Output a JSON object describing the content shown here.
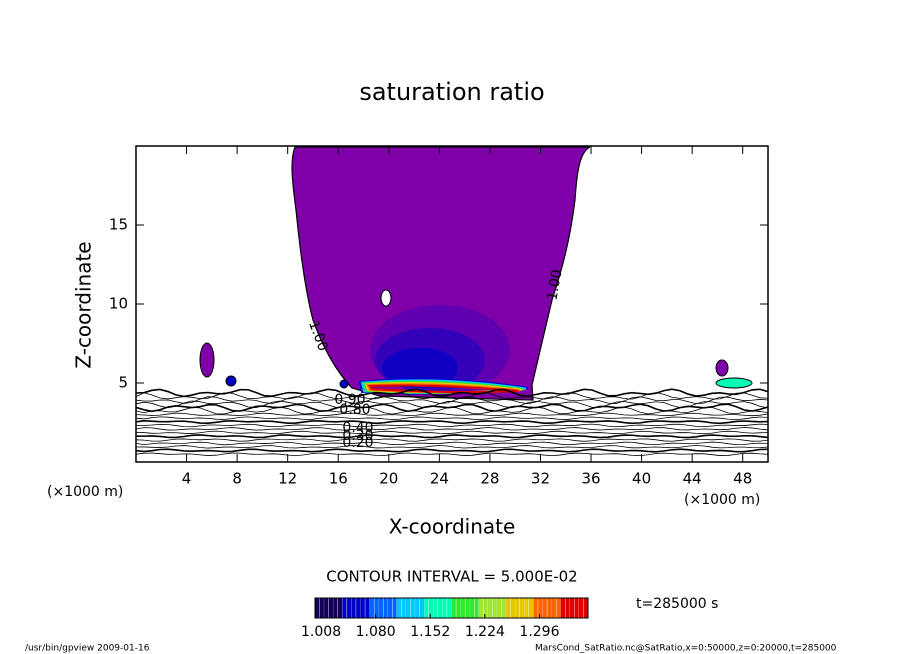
{
  "chart_data": {
    "type": "contour",
    "title": "saturation ratio",
    "xlabel": "X-coordinate",
    "ylabel": "Z-coordinate",
    "x_unit": "(×1000 m)",
    "y_unit": "(×1000 m)",
    "xlim": [
      0,
      50
    ],
    "ylim": [
      0,
      20
    ],
    "xticks": [
      4,
      8,
      12,
      16,
      20,
      24,
      28,
      32,
      36,
      40,
      44,
      48
    ],
    "yticks": [
      5,
      10,
      15
    ],
    "fill_color": "#7f00a8",
    "contour_labels": [
      {
        "value": 1,
        "label": "1.00"
      },
      {
        "value": 1,
        "label": "1.00"
      },
      {
        "value": 0.9,
        "label": "0.90"
      },
      {
        "value": 0.8,
        "label": "0.80"
      },
      {
        "value": 0.4,
        "label": "0.40"
      },
      {
        "value": 0.3,
        "label": "0.30"
      },
      {
        "value": 0.2,
        "label": "0.20"
      }
    ],
    "contour_interval": "CONTOUR INTERVAL = 5.000E-02",
    "colorbar": {
      "clim": [
        1.0,
        1.36
      ],
      "colors": [
        "#14005a",
        "#0000c8",
        "#0064ff",
        "#00c8ff",
        "#00ffb4",
        "#32e632",
        "#a0e632",
        "#e6c800",
        "#ff6400",
        "#dc0000"
      ],
      "ticks": [
        1.008,
        {
          "value": 1.08,
          "label": "1.080"
        },
        1.152,
        1.224,
        1.296
      ]
    },
    "time_label": "t=285000 s",
    "footer_left": "/usr/bin/gpview   2009-01-16",
    "footer_right": "MarsCond_SatRatio.nc@SatRatio,x=0:50000,z=0:20000,t=285000"
  }
}
